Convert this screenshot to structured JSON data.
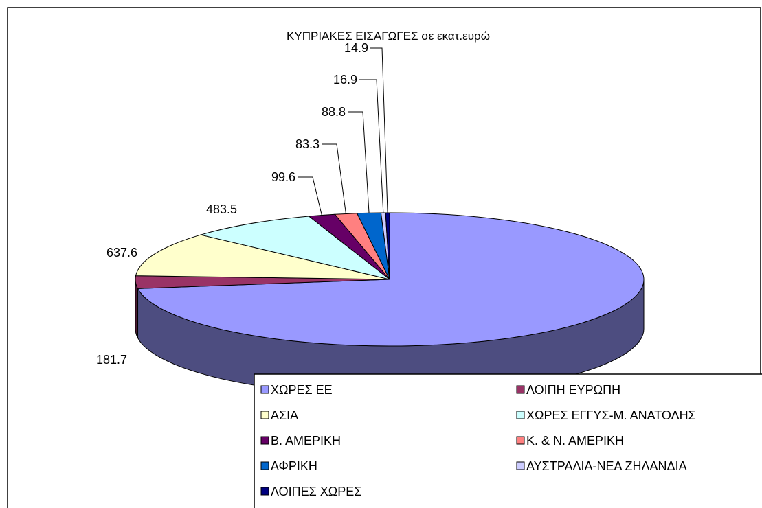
{
  "chart_data": {
    "type": "pie",
    "title": "ΚΥΠΡΙΑΚΕΣ ΕΙΣΑΓΩΓΕΣ σε εκατ.ευρώ",
    "categories": [
      "ΧΩΡΕΣ ΕΕ",
      "ΛΟΙΠΗ ΕΥΡΩΠΗ",
      "ΑΣΙΑ",
      "ΧΩΡΕΣ ΕΓΓΥΣ-Μ. ΑΝΑΤΟΛΗΣ",
      "Β. ΑΜΕΡΙΚΗ",
      "Κ. & Ν. ΑΜΕΡΙΚΗ",
      "ΑΦΡΙΚΗ",
      "ΑΥΣΤΡΑΛΙΑ-ΝΕΑ ΖΗΛΑΝΔΙΑ",
      "ΛΟΙΠΕΣ ΧΩΡΕΣ"
    ],
    "values": [
      4300,
      181.7,
      637.6,
      483.5,
      99.6,
      83.3,
      88.8,
      16.9,
      14.9
    ],
    "colors": [
      "#9999ff",
      "#993366",
      "#ffffcc",
      "#ccffff",
      "#660066",
      "#ff8080",
      "#0066cc",
      "#ccccff",
      "#000080"
    ],
    "legend": "bottom-right"
  }
}
